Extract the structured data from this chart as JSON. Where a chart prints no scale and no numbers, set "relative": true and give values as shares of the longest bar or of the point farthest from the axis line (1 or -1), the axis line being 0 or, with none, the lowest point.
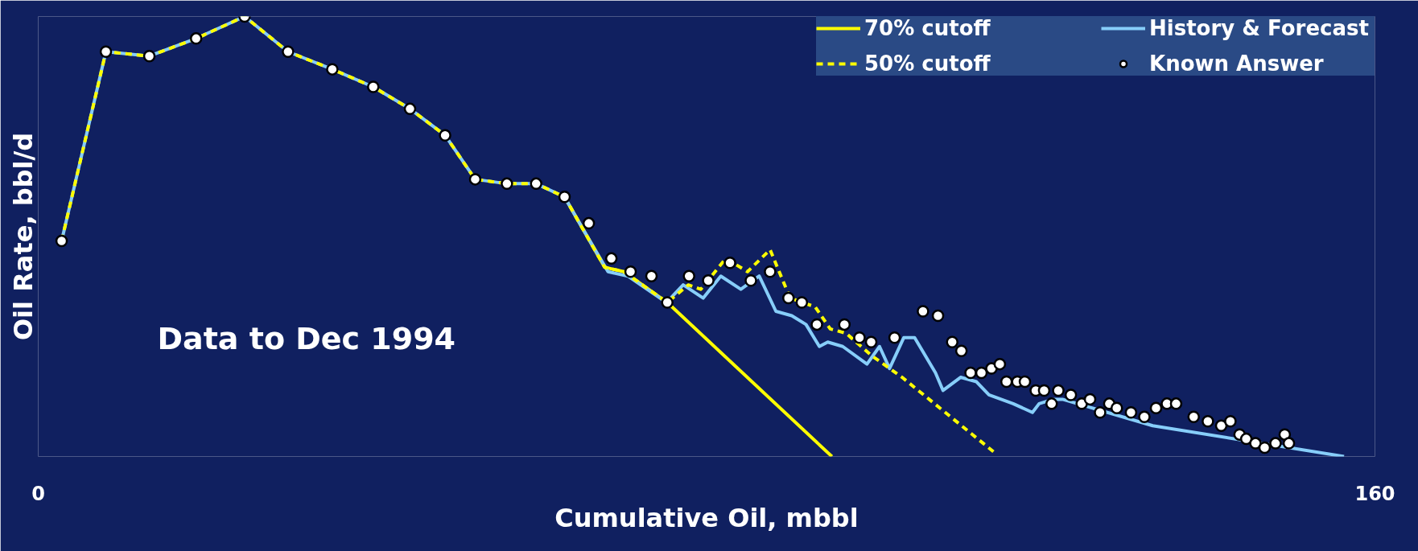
{
  "chart_data": {
    "type": "line",
    "relative": true,
    "xlabel": "Cumulative Oil, mbbl",
    "ylabel": "Oil Rate, bbl/d",
    "xlim": [
      0,
      160
    ],
    "xticks": [
      0,
      160
    ],
    "legend": "top right",
    "annotations": [
      "Data to Dec 1994"
    ],
    "series": [
      {
        "name": "70% cutoff",
        "color": "#ffff00",
        "line_style": "solid",
        "x": [
          63.0,
          67.8,
          70.1,
          75.3,
          95.0
        ],
        "values": [
          0.59,
          0.43,
          0.42,
          0.35,
          0.0
        ]
      },
      {
        "name": "50% cutoff",
        "color": "#ffff00",
        "line_style": "dashed",
        "x": [
          2.8,
          8.1,
          13.3,
          18.9,
          24.7,
          29.9,
          35.2,
          40.1,
          44.5,
          48.7,
          52.3,
          56.1,
          59.6,
          63.0,
          67.8,
          70.1,
          75.3,
          77.8,
          79.3,
          82.3,
          84.9,
          87.6,
          90.0,
          93.0,
          94.8,
          96.7,
          99.7,
          103.4,
          114.4
        ],
        "values": [
          0.49,
          0.92,
          0.91,
          0.95,
          1.0,
          0.92,
          0.88,
          0.84,
          0.79,
          0.73,
          0.63,
          0.62,
          0.62,
          0.59,
          0.43,
          0.42,
          0.35,
          0.39,
          0.38,
          0.45,
          0.42,
          0.47,
          0.36,
          0.34,
          0.29,
          0.28,
          0.23,
          0.18,
          0.01
        ]
      },
      {
        "name": "History & Forecast",
        "color": "#87cefa",
        "line_style": "solid",
        "x": [
          2.8,
          8.1,
          13.3,
          18.9,
          24.7,
          29.9,
          35.2,
          40.1,
          44.5,
          48.7,
          52.3,
          56.1,
          59.6,
          63.0,
          64.8,
          68.2,
          70.6,
          75.2,
          77.2,
          79.6,
          81.7,
          84.1,
          86.3,
          88.3,
          90.2,
          91.9,
          93.5,
          94.5,
          96.3,
          99.2,
          100.7,
          101.9,
          103.6,
          104.9,
          107.4,
          108.3,
          110.4,
          112.3,
          113.8,
          116.7,
          119.0,
          119.8,
          121.5,
          122.6,
          133.4,
          156.3
        ],
        "values": [
          0.49,
          0.92,
          0.91,
          0.95,
          1.0,
          0.92,
          0.88,
          0.84,
          0.79,
          0.73,
          0.63,
          0.62,
          0.62,
          0.59,
          0.53,
          0.42,
          0.41,
          0.35,
          0.39,
          0.36,
          0.41,
          0.38,
          0.41,
          0.33,
          0.32,
          0.3,
          0.25,
          0.26,
          0.25,
          0.21,
          0.25,
          0.2,
          0.27,
          0.27,
          0.19,
          0.15,
          0.18,
          0.17,
          0.14,
          0.12,
          0.1,
          0.12,
          0.13,
          0.13,
          0.07,
          0.0
        ]
      },
      {
        "name": "Known Answer",
        "type": "scatter",
        "color": "#ffffff",
        "marker": "circle",
        "x": [
          2.8,
          8.1,
          13.3,
          18.9,
          24.7,
          29.9,
          35.2,
          40.1,
          44.5,
          48.7,
          52.3,
          56.1,
          59.6,
          63.0,
          65.9,
          68.6,
          70.9,
          73.4,
          75.3,
          77.9,
          80.2,
          82.8,
          85.3,
          87.6,
          89.8,
          91.4,
          93.2,
          96.5,
          98.3,
          99.7,
          102.5,
          105.9,
          107.7,
          109.4,
          110.5,
          111.6,
          112.9,
          114.1,
          115.1,
          115.9,
          117.2,
          118.1,
          119.4,
          120.4,
          121.3,
          122.1,
          123.6,
          124.9,
          125.9,
          127.1,
          128.2,
          129.1,
          130.8,
          132.4,
          133.8,
          135.1,
          136.2,
          138.3,
          140.0,
          141.6,
          142.7,
          143.8,
          144.6,
          145.7,
          146.8,
          148.1,
          149.2,
          149.7
        ],
        "values": [
          0.49,
          0.92,
          0.91,
          0.95,
          1.0,
          0.92,
          0.88,
          0.84,
          0.79,
          0.73,
          0.63,
          0.62,
          0.62,
          0.59,
          0.53,
          0.45,
          0.42,
          0.41,
          0.35,
          0.41,
          0.4,
          0.44,
          0.4,
          0.42,
          0.36,
          0.35,
          0.3,
          0.3,
          0.27,
          0.26,
          0.27,
          0.33,
          0.32,
          0.26,
          0.24,
          0.19,
          0.19,
          0.2,
          0.21,
          0.17,
          0.17,
          0.17,
          0.15,
          0.15,
          0.12,
          0.15,
          0.14,
          0.12,
          0.13,
          0.1,
          0.12,
          0.11,
          0.1,
          0.09,
          0.11,
          0.12,
          0.12,
          0.09,
          0.08,
          0.07,
          0.08,
          0.05,
          0.04,
          0.03,
          0.02,
          0.03,
          0.05,
          0.03
        ]
      }
    ]
  }
}
